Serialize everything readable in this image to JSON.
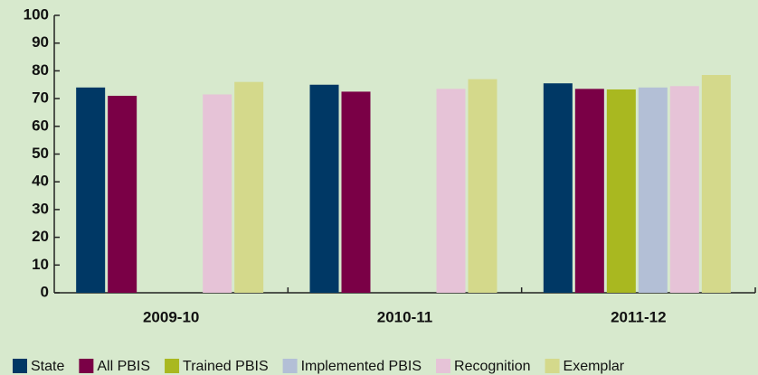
{
  "chart_data": {
    "type": "bar",
    "categories": [
      "2009-10",
      "2010-11",
      "2011-12"
    ],
    "series": [
      {
        "name": "State",
        "color": "#003865",
        "values": [
          74,
          75,
          75.5
        ]
      },
      {
        "name": "All PBIS",
        "color": "#7a0046",
        "values": [
          71,
          72.5,
          73.5
        ]
      },
      {
        "name": "Trained PBIS",
        "color": "#a9b820",
        "values": [
          null,
          null,
          73.3
        ]
      },
      {
        "name": "Implemented PBIS",
        "color": "#b3bfd6",
        "values": [
          null,
          null,
          74
        ]
      },
      {
        "name": "Recognition",
        "color": "#e6c3d7",
        "values": [
          71.5,
          73.5,
          74.5
        ]
      },
      {
        "name": "Exemplar",
        "color": "#d4d98b",
        "values": [
          76,
          77,
          78.5
        ]
      }
    ],
    "ylim": [
      0,
      100
    ],
    "yticks": [
      0,
      10,
      20,
      30,
      40,
      50,
      60,
      70,
      80,
      90,
      100
    ],
    "legend": "bottom"
  }
}
